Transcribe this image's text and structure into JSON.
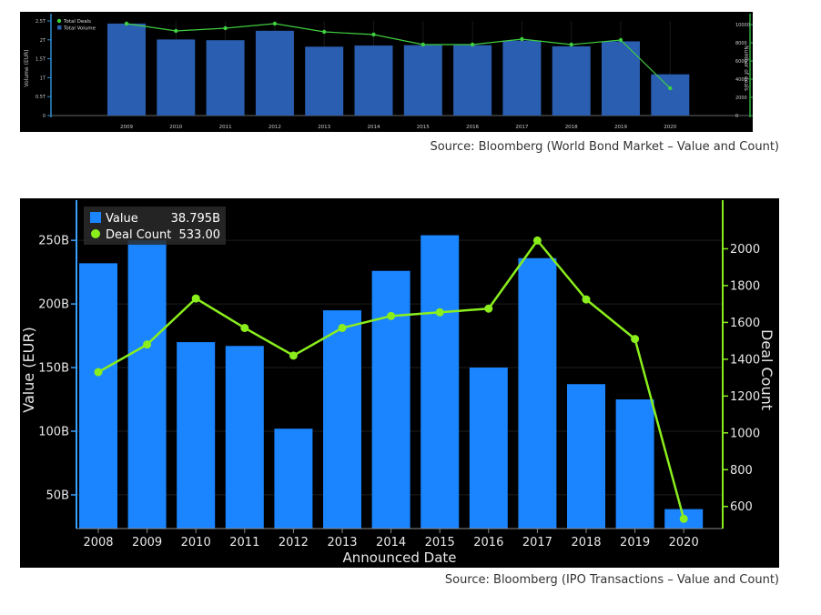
{
  "chart_data": [
    {
      "type": "bar",
      "categories": [
        "2009",
        "2010",
        "2011",
        "2012",
        "2013",
        "2014",
        "2015",
        "2016",
        "2017",
        "2018",
        "2019",
        "2020"
      ],
      "series": [
        {
          "name": "Total Volume",
          "kind": "bar",
          "axis": "left",
          "values": [
            2.43,
            2.01,
            1.99,
            2.24,
            1.82,
            1.85,
            1.86,
            1.86,
            1.98,
            1.83,
            1.96,
            1.09
          ]
        },
        {
          "name": "Total Deals",
          "kind": "line",
          "axis": "right",
          "values": [
            10100,
            9300,
            9600,
            10100,
            9200,
            8900,
            7800,
            7800,
            8400,
            7800,
            8300,
            3000
          ]
        }
      ],
      "ylabel": "Volume (EUR)",
      "ylabel_right": "Number of deals",
      "ylim": [
        0,
        2.5
      ],
      "ylim_right": [
        0,
        10400
      ],
      "yticks": [
        "0",
        "0.5T",
        "1T",
        "1.5T",
        "2T",
        "2.5T"
      ],
      "yticks_right": [
        "0",
        "2000",
        "4000",
        "6000",
        "8000",
        "10000"
      ],
      "legend": "top-left",
      "colors": {
        "bar": "#2a5eb0",
        "line": "#3fcf40",
        "axis": "#2f8fd0",
        "axis_right": "#2fb040"
      }
    },
    {
      "type": "bar",
      "categories": [
        "2008",
        "2009",
        "2010",
        "2011",
        "2012",
        "2013",
        "2014",
        "2015",
        "2016",
        "2017",
        "2018",
        "2019",
        "2020"
      ],
      "series": [
        {
          "name": "Value",
          "kind": "bar",
          "axis": "left",
          "values": [
            232,
            250,
            170,
            167,
            102,
            195,
            226,
            254,
            150,
            236,
            137,
            125,
            38.795
          ]
        },
        {
          "name": "Deal Count",
          "kind": "line",
          "axis": "right",
          "values": [
            1330,
            1480,
            1730,
            1570,
            1420,
            1570,
            1635,
            1655,
            1675,
            2045,
            1725,
            1510,
            533
          ]
        }
      ],
      "xlabel": "Announced Date",
      "ylabel": "Value (EUR)",
      "ylabel_right": "Deal Count",
      "ylim": [
        23.5,
        273
      ],
      "ylim_right": [
        480,
        2205
      ],
      "yticks": [
        "50B",
        "100B",
        "150B",
        "200B",
        "250B"
      ],
      "yticks_right": [
        "600",
        "800",
        "1000",
        "1200",
        "1400",
        "1600",
        "1800",
        "2000"
      ],
      "legend": "top-left",
      "legend_values": [
        "38.795B",
        "533.00"
      ],
      "colors": {
        "bar": "#1a85ff",
        "line": "#8aee1c",
        "axis": "#3aa0ff",
        "axis_right": "#8aee1c"
      }
    }
  ],
  "captions": {
    "chart1": "Source: Bloomberg (World Bond Market – Value and Count)",
    "chart2": "Source: Bloomberg (IPO Transactions – Value and Count)"
  }
}
